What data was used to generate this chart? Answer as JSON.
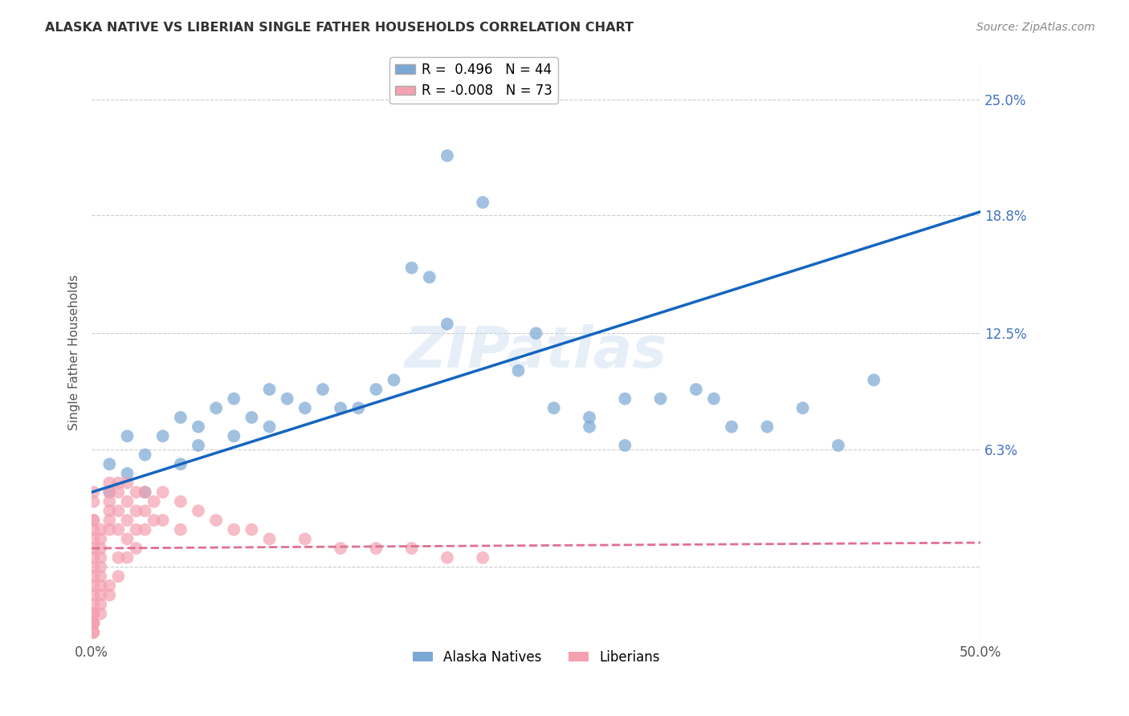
{
  "title": "ALASKA NATIVE VS LIBERIAN SINGLE FATHER HOUSEHOLDS CORRELATION CHART",
  "source": "Source: ZipAtlas.com",
  "ylabel": "Single Father Households",
  "xlim": [
    0.0,
    0.5
  ],
  "ylim": [
    -0.04,
    0.27
  ],
  "xticks": [
    0.0,
    0.1,
    0.2,
    0.3,
    0.4,
    0.5
  ],
  "xticklabels": [
    "0.0%",
    "",
    "",
    "",
    "",
    "50.0%"
  ],
  "ytick_right_vals": [
    0.0,
    0.063,
    0.125,
    0.188,
    0.25
  ],
  "ytick_right_labels": [
    "",
    "6.3%",
    "12.5%",
    "18.8%",
    "25.0%"
  ],
  "alaska_R": 0.496,
  "alaska_N": 44,
  "liberia_R": -0.008,
  "liberia_N": 73,
  "alaska_color": "#7BA7D4",
  "liberia_color": "#F4A0B0",
  "alaska_line_color": "#1565C0",
  "liberia_line_color": "#E07090",
  "liberia_line_style": "--",
  "watermark": "ZIPatlas",
  "background_color": "#ffffff",
  "alaska_x": [
    0.01,
    0.01,
    0.02,
    0.02,
    0.03,
    0.03,
    0.04,
    0.05,
    0.05,
    0.06,
    0.06,
    0.07,
    0.08,
    0.08,
    0.09,
    0.1,
    0.1,
    0.11,
    0.12,
    0.13,
    0.14,
    0.15,
    0.16,
    0.17,
    0.18,
    0.19,
    0.2,
    0.22,
    0.24,
    0.26,
    0.28,
    0.3,
    0.32,
    0.34,
    0.36,
    0.38,
    0.4,
    0.42,
    0.44,
    0.3,
    0.25,
    0.2,
    0.35,
    0.28
  ],
  "alaska_y": [
    0.04,
    0.055,
    0.05,
    0.07,
    0.04,
    0.06,
    0.07,
    0.055,
    0.08,
    0.065,
    0.075,
    0.085,
    0.07,
    0.09,
    0.08,
    0.095,
    0.075,
    0.09,
    0.085,
    0.095,
    0.085,
    0.085,
    0.095,
    0.1,
    0.16,
    0.155,
    0.22,
    0.195,
    0.105,
    0.085,
    0.075,
    0.09,
    0.09,
    0.095,
    0.075,
    0.075,
    0.085,
    0.065,
    0.1,
    0.065,
    0.125,
    0.13,
    0.09,
    0.08
  ],
  "liberia_x": [
    0.001,
    0.001,
    0.001,
    0.001,
    0.001,
    0.001,
    0.001,
    0.001,
    0.001,
    0.001,
    0.001,
    0.001,
    0.001,
    0.001,
    0.001,
    0.001,
    0.001,
    0.001,
    0.001,
    0.001,
    0.005,
    0.005,
    0.005,
    0.005,
    0.005,
    0.005,
    0.005,
    0.005,
    0.005,
    0.005,
    0.01,
    0.01,
    0.01,
    0.01,
    0.01,
    0.01,
    0.01,
    0.01,
    0.015,
    0.015,
    0.015,
    0.015,
    0.015,
    0.015,
    0.02,
    0.02,
    0.02,
    0.02,
    0.02,
    0.025,
    0.025,
    0.025,
    0.025,
    0.03,
    0.03,
    0.03,
    0.035,
    0.035,
    0.04,
    0.04,
    0.05,
    0.05,
    0.06,
    0.07,
    0.08,
    0.09,
    0.1,
    0.12,
    0.14,
    0.16,
    0.18,
    0.2,
    0.22
  ],
  "liberia_y": [
    0.025,
    0.025,
    0.02,
    0.015,
    0.01,
    0.005,
    0.0,
    -0.005,
    -0.01,
    -0.015,
    -0.02,
    -0.025,
    -0.025,
    -0.03,
    -0.03,
    -0.03,
    -0.035,
    -0.035,
    0.035,
    0.04,
    0.02,
    0.015,
    0.01,
    0.005,
    0.0,
    -0.005,
    -0.01,
    -0.015,
    -0.02,
    -0.025,
    0.045,
    0.04,
    0.035,
    0.03,
    0.025,
    0.02,
    -0.01,
    -0.015,
    0.045,
    0.04,
    0.03,
    0.02,
    0.005,
    -0.005,
    0.045,
    0.035,
    0.025,
    0.015,
    0.005,
    0.04,
    0.03,
    0.02,
    0.01,
    0.04,
    0.03,
    0.02,
    0.035,
    0.025,
    0.04,
    0.025,
    0.035,
    0.02,
    0.03,
    0.025,
    0.02,
    0.02,
    0.015,
    0.015,
    0.01,
    0.01,
    0.01,
    0.005,
    0.005
  ]
}
